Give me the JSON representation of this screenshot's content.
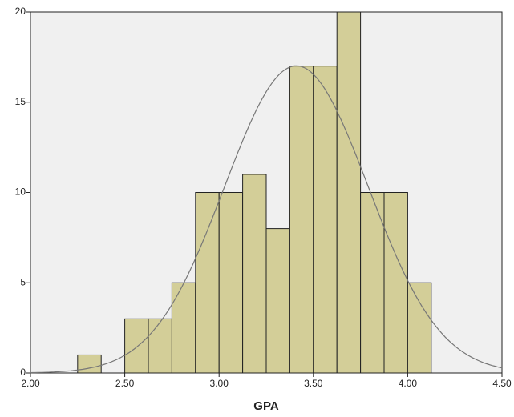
{
  "chart_data": {
    "type": "histogram",
    "x_label": "GPA",
    "bins": [
      2.25,
      2.375,
      2.5,
      2.625,
      2.75,
      2.875,
      3.0,
      3.125,
      3.25,
      3.375,
      3.5,
      3.625,
      3.75,
      3.875,
      4.0,
      4.125
    ],
    "values": [
      1,
      0,
      3,
      3,
      5,
      10,
      10,
      11,
      8,
      17,
      17,
      20,
      10,
      10,
      5
    ],
    "color": "#d3ce98",
    "edge_color": "#222222",
    "normal_curve": {
      "mean": 3.41,
      "sd": 0.381,
      "color": "#777777"
    },
    "xlim": [
      2.0,
      4.5
    ],
    "xticks": [
      {
        "value": 2.0,
        "label": "2.00"
      },
      {
        "value": 2.5,
        "label": "2.50"
      },
      {
        "value": 3.0,
        "label": "3.00"
      },
      {
        "value": 3.5,
        "label": "3.50"
      },
      {
        "value": 4.0,
        "label": "4.00"
      },
      {
        "value": 4.5,
        "label": "4.50"
      }
    ],
    "ylim": [
      0,
      20
    ],
    "yticks": [
      0,
      5,
      10,
      15,
      20
    ],
    "background": "#f0f0f0"
  }
}
